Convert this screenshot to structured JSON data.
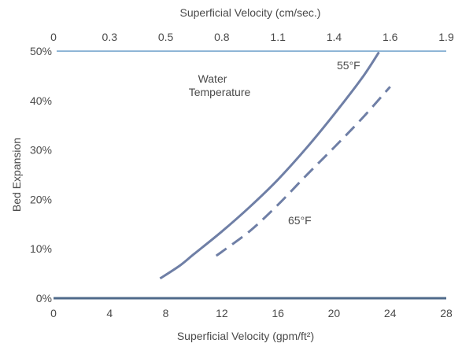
{
  "chart_data": {
    "type": "line",
    "title": "",
    "xlabel": "Superficial Velocity (gpm/ft²)",
    "ylabel": "Bed Expansion",
    "x2label": "Superficial Velocity (cm/sec.)",
    "xlim": [
      0,
      28
    ],
    "ylim": [
      0,
      50
    ],
    "x_ticks": [
      "0",
      "4",
      "8",
      "12",
      "16",
      "20",
      "24",
      "28"
    ],
    "y_ticks": [
      "0%",
      "10%",
      "20%",
      "30%",
      "40%",
      "50%"
    ],
    "x2_ticks": [
      "0",
      "0.3",
      "0.5",
      "0.8",
      "1.1",
      "1.4",
      "1.6",
      "1.9"
    ],
    "annotations": {
      "water_temperature_line1": "Water",
      "water_temperature_line2": "Temperature",
      "label_55": "55°F",
      "label_65": "65°F"
    },
    "series": [
      {
        "name": "55°F",
        "style": "solid",
        "color": "#6f7fa6",
        "x": [
          7.6,
          9,
          10,
          12,
          14,
          16,
          18,
          20,
          22,
          23.2
        ],
        "y": [
          4,
          6.6,
          8.9,
          13.5,
          18.5,
          24,
          30.3,
          37.2,
          44.6,
          49.8
        ]
      },
      {
        "name": "65°F",
        "style": "dashed",
        "color": "#6f7fa6",
        "x": [
          11.6,
          12,
          14,
          16,
          18,
          20,
          22,
          24
        ],
        "y": [
          8.6,
          9.4,
          13.6,
          18.9,
          24.8,
          30.5,
          36.4,
          42.8
        ]
      }
    ],
    "grid": false,
    "legend": "none"
  }
}
